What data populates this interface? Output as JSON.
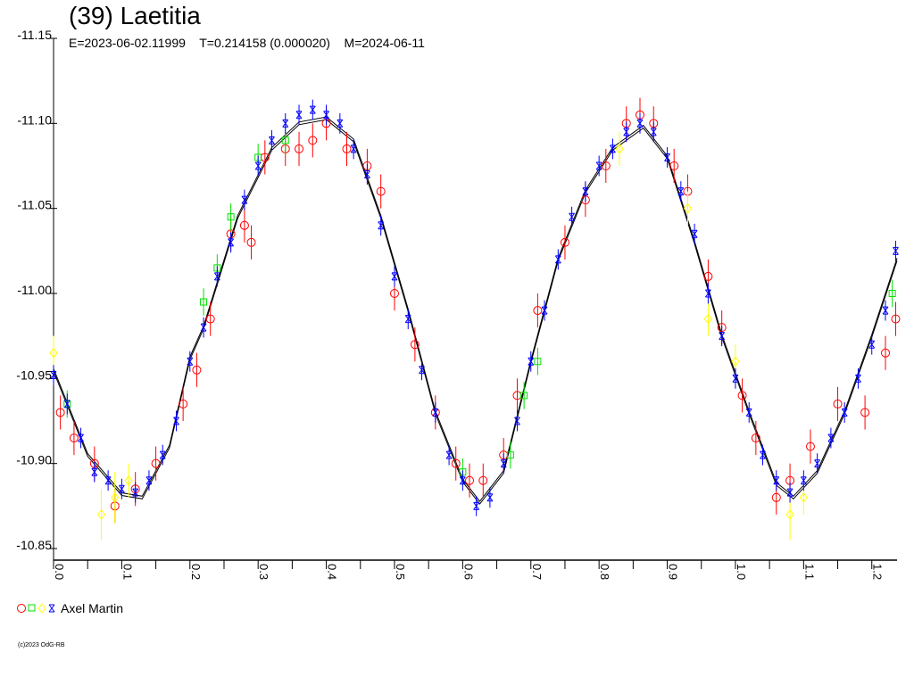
{
  "chart_data": {
    "type": "scatter",
    "title": "(39) Laetitia",
    "subtitle": {
      "epoch": "E=2023-06-02.11999",
      "period": "T=0.214158 (0.000020)",
      "mid_date": "M=2024-06-11"
    },
    "xlabel": "",
    "ylabel": "",
    "xlim": [
      0,
      1.237
    ],
    "ylim": [
      -11.15,
      -10.85
    ],
    "y_inverted": true,
    "x_ticks": [
      "0.0",
      "0.1",
      "0.2",
      "0.3",
      "0.4",
      "0.5",
      "0.6",
      "0.7",
      "0.8",
      "0.9",
      "1.0",
      "1.1",
      "1.2"
    ],
    "y_ticks": [
      "-11.15",
      "-11.10",
      "-11.05",
      "-11.00",
      "-10.95",
      "-10.90",
      "-10.85"
    ],
    "legend": {
      "label": "Axel Martin",
      "placement": "bottom-left"
    },
    "copyright": "(c)2023 OdG-RB",
    "colors": {
      "red": "#ff0000",
      "green": "#00e000",
      "yellow": "#ffff00",
      "blue": "#0000ff",
      "fit": "#000000"
    },
    "fit_curve": [
      [
        0.0,
        -10.955
      ],
      [
        0.05,
        -10.905
      ],
      [
        0.1,
        -10.882
      ],
      [
        0.13,
        -10.88
      ],
      [
        0.17,
        -10.91
      ],
      [
        0.2,
        -10.962
      ],
      [
        0.22,
        -10.98
      ],
      [
        0.27,
        -11.045
      ],
      [
        0.32,
        -11.085
      ],
      [
        0.36,
        -11.1
      ],
      [
        0.4,
        -11.103
      ],
      [
        0.44,
        -11.09
      ],
      [
        0.48,
        -11.045
      ],
      [
        0.52,
        -10.99
      ],
      [
        0.56,
        -10.93
      ],
      [
        0.6,
        -10.89
      ],
      [
        0.625,
        -10.877
      ],
      [
        0.66,
        -10.895
      ],
      [
        0.7,
        -10.96
      ],
      [
        0.74,
        -11.02
      ],
      [
        0.78,
        -11.06
      ],
      [
        0.82,
        -11.085
      ],
      [
        0.865,
        -11.098
      ],
      [
        0.9,
        -11.08
      ],
      [
        0.94,
        -11.03
      ],
      [
        0.98,
        -10.975
      ],
      [
        1.02,
        -10.93
      ],
      [
        1.06,
        -10.888
      ],
      [
        1.085,
        -10.88
      ],
      [
        1.12,
        -10.895
      ],
      [
        1.16,
        -10.93
      ],
      [
        1.2,
        -10.975
      ],
      [
        1.237,
        -11.02
      ]
    ],
    "series": [
      {
        "name": "Axel Martin (circle)",
        "marker": "circle",
        "color": "#ff0000",
        "points": [
          [
            0.01,
            -10.93,
            0.01
          ],
          [
            0.03,
            -10.915,
            0.01
          ],
          [
            0.06,
            -10.9,
            0.01
          ],
          [
            0.09,
            -10.875,
            0.01
          ],
          [
            0.12,
            -10.885,
            0.01
          ],
          [
            0.15,
            -10.9,
            0.01
          ],
          [
            0.19,
            -10.935,
            0.01
          ],
          [
            0.21,
            -10.955,
            0.01
          ],
          [
            0.23,
            -10.985,
            0.01
          ],
          [
            0.26,
            -11.035,
            0.01
          ],
          [
            0.28,
            -11.04,
            0.01
          ],
          [
            0.29,
            -11.03,
            0.01
          ],
          [
            0.31,
            -11.08,
            0.01
          ],
          [
            0.34,
            -11.085,
            0.01
          ],
          [
            0.36,
            -11.085,
            0.01
          ],
          [
            0.38,
            -11.09,
            0.01
          ],
          [
            0.4,
            -11.1,
            0.01
          ],
          [
            0.43,
            -11.085,
            0.01
          ],
          [
            0.46,
            -11.075,
            0.01
          ],
          [
            0.48,
            -11.06,
            0.01
          ],
          [
            0.5,
            -11.0,
            0.01
          ],
          [
            0.53,
            -10.97,
            0.01
          ],
          [
            0.56,
            -10.93,
            0.01
          ],
          [
            0.59,
            -10.9,
            0.01
          ],
          [
            0.61,
            -10.89,
            0.01
          ],
          [
            0.63,
            -10.89,
            0.01
          ],
          [
            0.66,
            -10.905,
            0.01
          ],
          [
            0.68,
            -10.94,
            0.01
          ],
          [
            0.71,
            -10.99,
            0.01
          ],
          [
            0.75,
            -11.03,
            0.01
          ],
          [
            0.78,
            -11.055,
            0.01
          ],
          [
            0.81,
            -11.075,
            0.01
          ],
          [
            0.84,
            -11.1,
            0.01
          ],
          [
            0.86,
            -11.105,
            0.01
          ],
          [
            0.88,
            -11.1,
            0.01
          ],
          [
            0.91,
            -11.075,
            0.01
          ],
          [
            0.93,
            -11.06,
            0.01
          ],
          [
            0.96,
            -11.01,
            0.01
          ],
          [
            0.98,
            -10.98,
            0.01
          ],
          [
            1.01,
            -10.94,
            0.01
          ],
          [
            1.03,
            -10.915,
            0.01
          ],
          [
            1.06,
            -10.88,
            0.01
          ],
          [
            1.08,
            -10.89,
            0.01
          ],
          [
            1.11,
            -10.91,
            0.01
          ],
          [
            1.15,
            -10.935,
            0.01
          ],
          [
            1.19,
            -10.93,
            0.01
          ],
          [
            1.22,
            -10.965,
            0.01
          ],
          [
            1.235,
            -10.985,
            0.01
          ]
        ]
      },
      {
        "name": "Axel Martin (square)",
        "marker": "square",
        "color": "#00e000",
        "points": [
          [
            0.02,
            -10.935,
            0.008
          ],
          [
            0.22,
            -10.995,
            0.008
          ],
          [
            0.24,
            -11.015,
            0.008
          ],
          [
            0.26,
            -11.045,
            0.008
          ],
          [
            0.3,
            -11.08,
            0.008
          ],
          [
            0.34,
            -11.09,
            0.008
          ],
          [
            0.6,
            -10.895,
            0.008
          ],
          [
            0.67,
            -10.905,
            0.008
          ],
          [
            0.69,
            -10.94,
            0.008
          ],
          [
            0.71,
            -10.96,
            0.008
          ],
          [
            1.23,
            -11.0,
            0.008
          ]
        ]
      },
      {
        "name": "Axel Martin (diamond)",
        "marker": "diamond",
        "color": "#ffff00",
        "points": [
          [
            0.0,
            -10.965,
            0.01
          ],
          [
            0.07,
            -10.87,
            0.015
          ],
          [
            0.09,
            -10.88,
            0.015
          ],
          [
            0.11,
            -10.89,
            0.01
          ],
          [
            0.83,
            -11.085,
            0.01
          ],
          [
            0.93,
            -11.05,
            0.01
          ],
          [
            0.96,
            -10.985,
            0.01
          ],
          [
            1.0,
            -10.96,
            0.01
          ],
          [
            1.08,
            -10.87,
            0.015
          ],
          [
            1.1,
            -10.88,
            0.01
          ]
        ]
      },
      {
        "name": "Axel Martin (star)",
        "marker": "star",
        "color": "#0000ff",
        "points": [
          [
            0.0,
            -10.952,
            0.006
          ],
          [
            0.02,
            -10.935,
            0.006
          ],
          [
            0.04,
            -10.915,
            0.006
          ],
          [
            0.06,
            -10.895,
            0.006
          ],
          [
            0.08,
            -10.89,
            0.006
          ],
          [
            0.1,
            -10.885,
            0.006
          ],
          [
            0.12,
            -10.883,
            0.006
          ],
          [
            0.14,
            -10.89,
            0.006
          ],
          [
            0.16,
            -10.905,
            0.006
          ],
          [
            0.18,
            -10.925,
            0.006
          ],
          [
            0.2,
            -10.96,
            0.006
          ],
          [
            0.22,
            -10.98,
            0.006
          ],
          [
            0.24,
            -11.01,
            0.006
          ],
          [
            0.26,
            -11.03,
            0.006
          ],
          [
            0.28,
            -11.055,
            0.006
          ],
          [
            0.3,
            -11.075,
            0.006
          ],
          [
            0.32,
            -11.09,
            0.006
          ],
          [
            0.34,
            -11.1,
            0.006
          ],
          [
            0.36,
            -11.105,
            0.006
          ],
          [
            0.38,
            -11.108,
            0.006
          ],
          [
            0.4,
            -11.105,
            0.006
          ],
          [
            0.42,
            -11.1,
            0.006
          ],
          [
            0.44,
            -11.085,
            0.006
          ],
          [
            0.46,
            -11.07,
            0.006
          ],
          [
            0.48,
            -11.04,
            0.006
          ],
          [
            0.5,
            -11.01,
            0.006
          ],
          [
            0.52,
            -10.985,
            0.006
          ],
          [
            0.54,
            -10.955,
            0.006
          ],
          [
            0.56,
            -10.93,
            0.006
          ],
          [
            0.58,
            -10.905,
            0.006
          ],
          [
            0.6,
            -10.89,
            0.006
          ],
          [
            0.62,
            -10.875,
            0.006
          ],
          [
            0.64,
            -10.88,
            0.006
          ],
          [
            0.66,
            -10.9,
            0.006
          ],
          [
            0.68,
            -10.925,
            0.006
          ],
          [
            0.7,
            -10.96,
            0.006
          ],
          [
            0.72,
            -10.99,
            0.006
          ],
          [
            0.74,
            -11.02,
            0.006
          ],
          [
            0.76,
            -11.045,
            0.006
          ],
          [
            0.78,
            -11.06,
            0.006
          ],
          [
            0.8,
            -11.075,
            0.006
          ],
          [
            0.82,
            -11.085,
            0.006
          ],
          [
            0.84,
            -11.095,
            0.006
          ],
          [
            0.86,
            -11.1,
            0.006
          ],
          [
            0.88,
            -11.095,
            0.006
          ],
          [
            0.9,
            -11.08,
            0.006
          ],
          [
            0.92,
            -11.06,
            0.006
          ],
          [
            0.94,
            -11.035,
            0.006
          ],
          [
            0.96,
            -11.0,
            0.006
          ],
          [
            0.98,
            -10.975,
            0.006
          ],
          [
            1.0,
            -10.95,
            0.006
          ],
          [
            1.02,
            -10.93,
            0.006
          ],
          [
            1.04,
            -10.905,
            0.006
          ],
          [
            1.06,
            -10.89,
            0.006
          ],
          [
            1.08,
            -10.883,
            0.006
          ],
          [
            1.1,
            -10.89,
            0.006
          ],
          [
            1.12,
            -10.9,
            0.006
          ],
          [
            1.14,
            -10.915,
            0.006
          ],
          [
            1.16,
            -10.93,
            0.006
          ],
          [
            1.18,
            -10.95,
            0.006
          ],
          [
            1.2,
            -10.97,
            0.006
          ],
          [
            1.22,
            -10.99,
            0.006
          ],
          [
            1.235,
            -11.025,
            0.006
          ]
        ]
      }
    ]
  }
}
